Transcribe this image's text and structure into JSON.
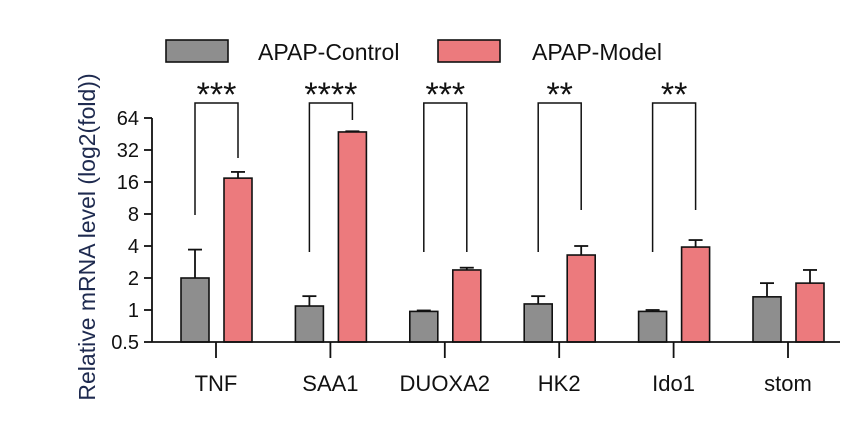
{
  "chart_data": {
    "type": "bar",
    "ylabel": "Relative mRNA level (log2(fold))",
    "ylim": [
      0.5,
      64
    ],
    "yticks": [
      0.5,
      1,
      2,
      4,
      8,
      16,
      32,
      64
    ],
    "categories": [
      "TNF",
      "SAA1",
      "DUOXA2",
      "HK2",
      "Ido1",
      "stom"
    ],
    "series": [
      {
        "name": "APAP-Control",
        "color": "#8e8e8e",
        "values": [
          2.0,
          1.09,
          0.97,
          1.14,
          0.97,
          1.33
        ],
        "error_upper": [
          3.7,
          1.35,
          0.99,
          1.35,
          1.0,
          1.79
        ]
      },
      {
        "name": "APAP-Model",
        "color": "#ec7a7d",
        "values": [
          17.4,
          47.3,
          2.38,
          3.29,
          3.91,
          1.79
        ],
        "error_upper": [
          19.9,
          48.0,
          2.5,
          4.0,
          4.55,
          2.38
        ]
      }
    ],
    "significance": [
      {
        "category": "TNF",
        "label": "***"
      },
      {
        "category": "SAA1",
        "label": "****"
      },
      {
        "category": "DUOXA2",
        "label": "***"
      },
      {
        "category": "HK2",
        "label": "**"
      },
      {
        "category": "Ido1",
        "label": "**"
      }
    ]
  }
}
